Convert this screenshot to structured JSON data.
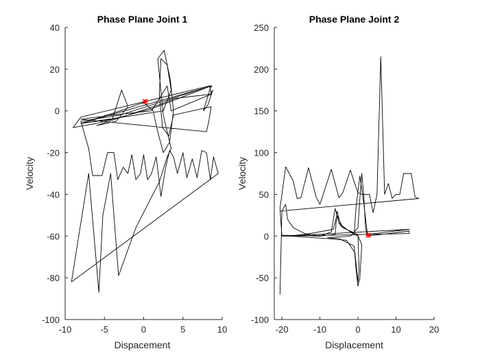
{
  "chart_data": [
    {
      "type": "line",
      "title": "Phase Plane Joint 1",
      "xlabel": "Dispacement",
      "ylabel": "Velocity",
      "xlim": [
        -10,
        10
      ],
      "ylim": [
        -100,
        40
      ],
      "xticks": [
        -10,
        -5,
        0,
        5,
        10
      ],
      "yticks": [
        -100,
        -80,
        -60,
        -40,
        -20,
        0,
        20,
        40
      ],
      "grid": false,
      "line_color": "#000000",
      "marker": {
        "x": 0.2,
        "y": 4.5,
        "color": "#ff0000"
      },
      "series": [
        {
          "values": [
            [
              -9.2,
              -82
            ],
            [
              -7.0,
              -30
            ],
            [
              -5.7,
              -87
            ],
            [
              -5.2,
              -50
            ],
            [
              -4.2,
              -30
            ],
            [
              -3.2,
              -79
            ],
            [
              -1.0,
              -56
            ],
            [
              2.0,
              -34
            ],
            [
              3.0,
              -22
            ],
            [
              3.5,
              -18
            ],
            [
              2.5,
              -2
            ],
            [
              1.8,
              25
            ],
            [
              2.6,
              29
            ],
            [
              3.4,
              15
            ],
            [
              3.8,
              0
            ],
            [
              3.3,
              -15
            ],
            [
              2.5,
              -20
            ],
            [
              1.8,
              -10
            ],
            [
              1.2,
              0
            ],
            [
              0.0,
              4
            ],
            [
              -3.0,
              0
            ],
            [
              -8.0,
              -6
            ],
            [
              -4.0,
              -4
            ],
            [
              -2.8,
              10
            ],
            [
              -2.0,
              2
            ],
            [
              -3.5,
              -5
            ],
            [
              -6.0,
              -7
            ],
            [
              2.0,
              3
            ],
            [
              4.0,
              6
            ],
            [
              8.5,
              8
            ],
            [
              8.8,
              10
            ],
            [
              8.2,
              3
            ],
            [
              7.6,
              0
            ],
            [
              8.5,
              11
            ],
            [
              8.7,
              12
            ],
            [
              -8.0,
              -6
            ],
            [
              2.5,
              0
            ],
            [
              3.5,
              10
            ],
            [
              3.0,
              22
            ],
            [
              2.2,
              25
            ],
            [
              2.0,
              8
            ],
            [
              2.4,
              -8
            ],
            [
              3.2,
              -12
            ],
            [
              3.8,
              -2
            ],
            [
              8.6,
              2
            ],
            [
              8.3,
              -5
            ],
            [
              8.0,
              -10
            ],
            [
              -8.0,
              -4
            ],
            [
              -4.0,
              -2
            ],
            [
              1.0,
              0
            ],
            [
              2.0,
              6
            ],
            [
              3.0,
              12
            ],
            [
              3.5,
              0
            ],
            [
              8.6,
              8
            ],
            [
              8.4,
              12
            ],
            [
              -8.0,
              -3
            ],
            [
              -9.0,
              -8
            ],
            [
              -6.0,
              -6
            ],
            [
              1.0,
              1
            ],
            [
              8.6,
              12
            ],
            [
              2.0,
              4
            ],
            [
              -3.0,
              -2
            ],
            [
              -8.0,
              -5
            ],
            [
              -7.0,
              -18
            ],
            [
              -6.5,
              -31
            ],
            [
              -5.3,
              -31
            ],
            [
              -4.6,
              -20
            ],
            [
              -3.8,
              -20
            ],
            [
              -3.3,
              -33
            ],
            [
              -2.6,
              -27
            ],
            [
              -2.0,
              -30
            ],
            [
              -1.5,
              -21
            ],
            [
              -1.0,
              -33
            ],
            [
              -0.4,
              -30
            ],
            [
              0.0,
              -21
            ],
            [
              0.5,
              -33
            ],
            [
              1.0,
              -30
            ],
            [
              1.6,
              -22
            ],
            [
              2.2,
              -41
            ],
            [
              2.8,
              -27
            ],
            [
              3.3,
              -19
            ],
            [
              3.8,
              -22
            ],
            [
              4.3,
              -30
            ],
            [
              5.0,
              -20
            ],
            [
              5.5,
              -32
            ],
            [
              6.2,
              -23
            ],
            [
              6.8,
              -32
            ],
            [
              7.4,
              -19
            ],
            [
              8.0,
              -20
            ],
            [
              8.5,
              -33
            ],
            [
              8.9,
              -22
            ],
            [
              9.5,
              -30
            ],
            [
              -9.2,
              -82
            ]
          ]
        }
      ]
    },
    {
      "type": "line",
      "title": "Phase Plane Joint 2",
      "xlabel": "Displacement",
      "ylabel": "Velocity",
      "xlim": [
        -22,
        20
      ],
      "ylim": [
        -100,
        250
      ],
      "xticks": [
        -20,
        -10,
        0,
        10,
        20
      ],
      "yticks": [
        -100,
        -50,
        0,
        50,
        100,
        150,
        200,
        250
      ],
      "grid": false,
      "line_color": "#000000",
      "marker": {
        "x": 2.7,
        "y": 1,
        "color": "#ff0000"
      },
      "series": [
        {
          "values": [
            [
              -20.5,
              -70
            ],
            [
              -20.0,
              30
            ],
            [
              -19.0,
              38
            ],
            [
              -18.5,
              20
            ],
            [
              -17.0,
              10
            ],
            [
              -14.0,
              3
            ],
            [
              -10.0,
              0
            ],
            [
              -7.0,
              5
            ],
            [
              -6.0,
              33
            ],
            [
              -5.0,
              15
            ],
            [
              -2.0,
              5
            ],
            [
              0.0,
              0
            ],
            [
              1.0,
              -10
            ],
            [
              0.5,
              -50
            ],
            [
              0.0,
              -60
            ],
            [
              -0.5,
              -40
            ],
            [
              -1.0,
              -12
            ],
            [
              -5.0,
              -3
            ],
            [
              -8.0,
              -2
            ],
            [
              -2.0,
              0
            ],
            [
              0.0,
              10
            ],
            [
              0.5,
              45
            ],
            [
              1.0,
              75
            ],
            [
              1.5,
              50
            ],
            [
              2.0,
              10
            ],
            [
              2.5,
              0
            ],
            [
              13.5,
              6
            ],
            [
              13.5,
              3
            ],
            [
              -18.0,
              0
            ],
            [
              -20.0,
              1
            ],
            [
              -10.0,
              0
            ],
            [
              -6.0,
              2
            ],
            [
              -5.5,
              30
            ],
            [
              -4.5,
              12
            ],
            [
              -1.0,
              3
            ],
            [
              -0.5,
              35
            ],
            [
              0.5,
              72
            ],
            [
              1.5,
              40
            ],
            [
              2.5,
              2
            ],
            [
              13.5,
              8
            ],
            [
              -19.0,
              0
            ],
            [
              -14.0,
              2
            ],
            [
              -6.5,
              8
            ],
            [
              -5.5,
              25
            ],
            [
              -4.0,
              10
            ],
            [
              0.0,
              2
            ],
            [
              0.3,
              -40
            ],
            [
              0.0,
              -55
            ],
            [
              -0.8,
              -20
            ],
            [
              -3.0,
              -5
            ],
            [
              -8.0,
              -3
            ],
            [
              -18.0,
              0
            ],
            [
              -20.0,
              0
            ],
            [
              -20.5,
              33
            ],
            [
              -19.0,
              83
            ],
            [
              -17.0,
              66
            ],
            [
              -16.0,
              45
            ],
            [
              -15.0,
              46
            ],
            [
              -13.0,
              82
            ],
            [
              -11.0,
              47
            ],
            [
              -10.0,
              38
            ],
            [
              -9.0,
              52
            ],
            [
              -7.0,
              80
            ],
            [
              -5.0,
              46
            ],
            [
              -4.0,
              52
            ],
            [
              -2.0,
              79
            ],
            [
              -1.0,
              65
            ],
            [
              0.0,
              52
            ],
            [
              1.0,
              50
            ],
            [
              2.0,
              50
            ],
            [
              3.0,
              50
            ],
            [
              4.0,
              28
            ],
            [
              5.0,
              50
            ],
            [
              6.0,
              215
            ],
            [
              7.0,
              50
            ],
            [
              8.0,
              63
            ],
            [
              9.0,
              45
            ],
            [
              10.0,
              50
            ],
            [
              11.0,
              50
            ],
            [
              12.0,
              75
            ],
            [
              14.0,
              75
            ],
            [
              15.0,
              47
            ],
            [
              16.0,
              45
            ],
            [
              -20.5,
              30
            ]
          ]
        }
      ]
    }
  ]
}
